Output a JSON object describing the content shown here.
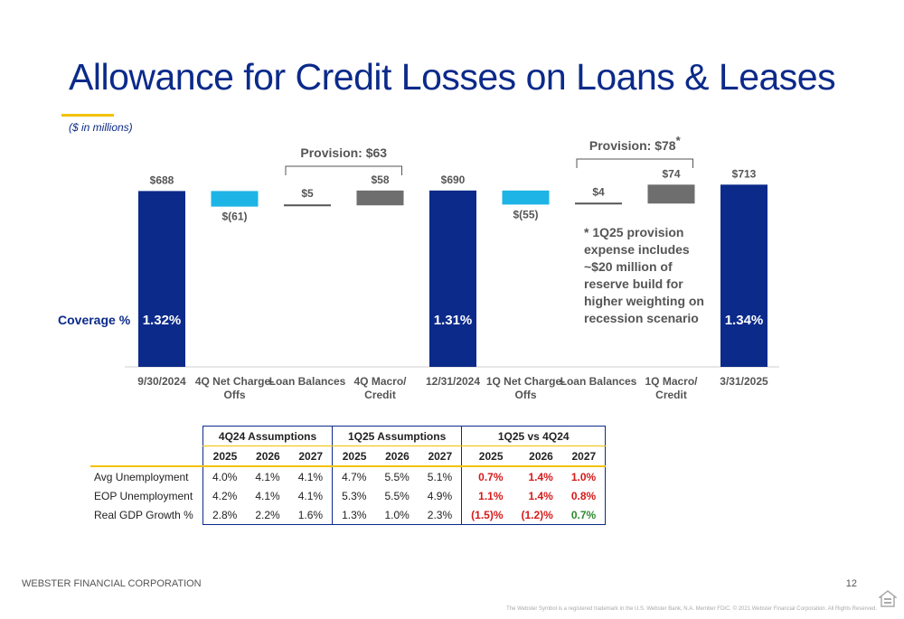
{
  "page": {
    "title": "Allowance for Credit Losses on Loans & Leases",
    "units": "($ in millions)",
    "coverage_label": "Coverage %",
    "footer_company": "WEBSTER FINANCIAL CORPORATION",
    "page_number": "12",
    "legal": "The Webster Symbol is a registered trademark in the U.S. Webster Bank, N.A. Member FDIC. © 2021 Webster Financial Corporation. All Rights Reserved.",
    "equal_housing_icon": "equal-housing-lender-icon"
  },
  "chart_data": {
    "type": "bar",
    "subtype": "waterfall",
    "categories": [
      "9/30/2024",
      "4Q Net Charge-Offs",
      "Loan Balances",
      "4Q Macro/ Credit",
      "12/31/2024",
      "1Q Net Charge-Offs",
      "Loan Balances",
      "1Q Macro/ Credit",
      "3/31/2025"
    ],
    "tick_lines": [
      [
        "9/30/2024"
      ],
      [
        "4Q Net Charge-",
        "Offs"
      ],
      [
        "Loan Balances"
      ],
      [
        "4Q Macro/",
        "Credit"
      ],
      [
        "12/31/2024"
      ],
      [
        "1Q Net Charge-",
        "Offs"
      ],
      [
        "Loan Balances"
      ],
      [
        "1Q Macro/",
        "Credit"
      ],
      [
        "3/31/2025"
      ]
    ],
    "values": [
      688,
      -61,
      5,
      58,
      690,
      -55,
      4,
      74,
      713
    ],
    "kinds": [
      "total",
      "delta",
      "delta",
      "delta",
      "total",
      "delta",
      "delta",
      "delta",
      "total"
    ],
    "value_labels": [
      "$688",
      "$(61)",
      "$5",
      "$58",
      "$690",
      "$(55)",
      "$4",
      "$74",
      "$713"
    ],
    "coverage": [
      "1.32%",
      "",
      "",
      "",
      "1.31%",
      "",
      "",
      "",
      "1.34%"
    ],
    "brackets": [
      {
        "label": "Provision: $63",
        "star": "",
        "from": 2,
        "to": 3
      },
      {
        "label": "Provision: $78",
        "star": "*",
        "from": 6,
        "to": 7
      }
    ],
    "note": [
      "* 1Q25 provision",
      "expense includes",
      "~$20 million of",
      "reserve build for",
      "higher weighting on",
      "recession scenario"
    ],
    "colors": {
      "total": "#0b2a8a",
      "charge_off": "#1eb4e6",
      "macro": "#6e6e6e",
      "loan_line": "#555555",
      "label": "#555555"
    }
  },
  "table": {
    "groups": [
      "4Q24 Assumptions",
      "1Q25 Assumptions",
      "1Q25 vs 4Q24"
    ],
    "years": [
      "2025",
      "2026",
      "2027",
      "2025",
      "2026",
      "2027",
      "2025",
      "2026",
      "2027"
    ],
    "rows": [
      {
        "label": "Avg Unemployment",
        "values": [
          "4.0%",
          "4.1%",
          "4.1%",
          "4.7%",
          "5.5%",
          "5.1%",
          "0.7%",
          "1.4%",
          "1.0%"
        ],
        "diff_colors": [
          "neg",
          "neg",
          "neg"
        ]
      },
      {
        "label": "EOP Unemployment",
        "values": [
          "4.2%",
          "4.1%",
          "4.1%",
          "5.3%",
          "5.5%",
          "4.9%",
          "1.1%",
          "1.4%",
          "0.8%"
        ],
        "diff_colors": [
          "neg",
          "neg",
          "neg"
        ]
      },
      {
        "label": "Real GDP Growth %",
        "values": [
          "2.8%",
          "2.2%",
          "1.6%",
          "1.3%",
          "1.0%",
          "2.3%",
          "(1.5)%",
          "(1.2)%",
          "0.7%"
        ],
        "diff_colors": [
          "neg",
          "neg",
          "pos"
        ]
      }
    ]
  }
}
